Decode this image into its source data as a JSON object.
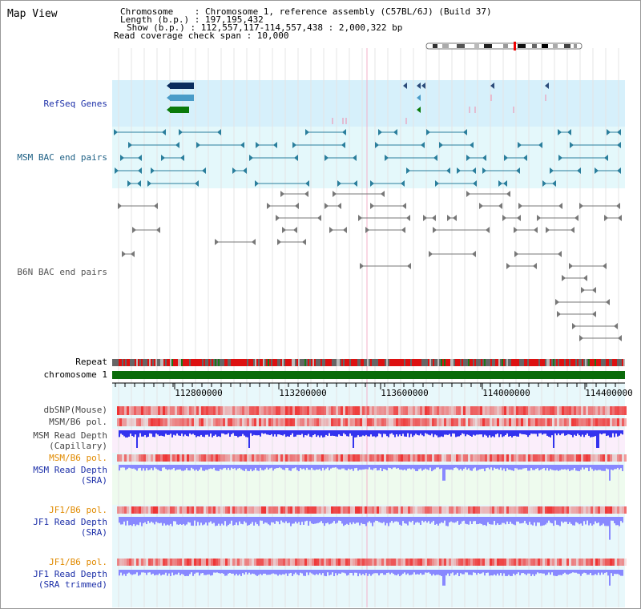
{
  "title": "Map View",
  "info": {
    "chromosome": "Chromosome    : Chromosome 1, reference assembly (C57BL/6J) (Build 37)",
    "length": "Length (b.p.) : 197,195,432",
    "show": "Show (b.p.) : 112,557,117-114,557,438 : 2,000,322 bp",
    "read_coverage": "Read coverage check span : 10,000"
  },
  "tracks": {
    "refseq": "RefSeq Genes",
    "msm_bac": "MSM BAC end pairs",
    "b6n_bac": "B6N BAC end pairs",
    "repeat": "Repeat",
    "chromosome": "chromosome 1",
    "dbsnp": "dbSNP(Mouse)",
    "msm_b6_pol_1": "MSM/B6 pol.",
    "msm_depth_cap_1": "MSM Read Depth",
    "msm_depth_cap_2": "(Capillary)",
    "msm_b6_pol_2": "MSM/B6 pol.",
    "msm_depth_sra_1": "MSM Read Depth",
    "msm_depth_sra_2": "(SRA)",
    "jf1_b6_pol_1": "JF1/B6 pol.",
    "jf1_depth_sra_1": "JF1 Read Depth",
    "jf1_depth_sra_2": "(SRA)",
    "jf1_b6_pol_2": "JF1/B6 pol.",
    "jf1_depth_trim_1": "JF1 Read Depth",
    "jf1_depth_trim_2": "(SRA trimmed)"
  },
  "axis_ticks": [
    "112800000",
    "113200000",
    "113600000",
    "114000000",
    "114400000"
  ],
  "colors": {
    "refseq_bg": "#d6f0fb",
    "bac_bg": "#e4f8fb",
    "track_bg": "#e8f8fb",
    "capillary_bg": "#fbeefb",
    "sra_bg": "#eefbee",
    "repeat_red": "#dd1111",
    "chromosome_green": "#0a6b0a",
    "depth_blue": "#3333ee",
    "depth_light": "#8888ff",
    "pol_red": "#ee3333"
  }
}
